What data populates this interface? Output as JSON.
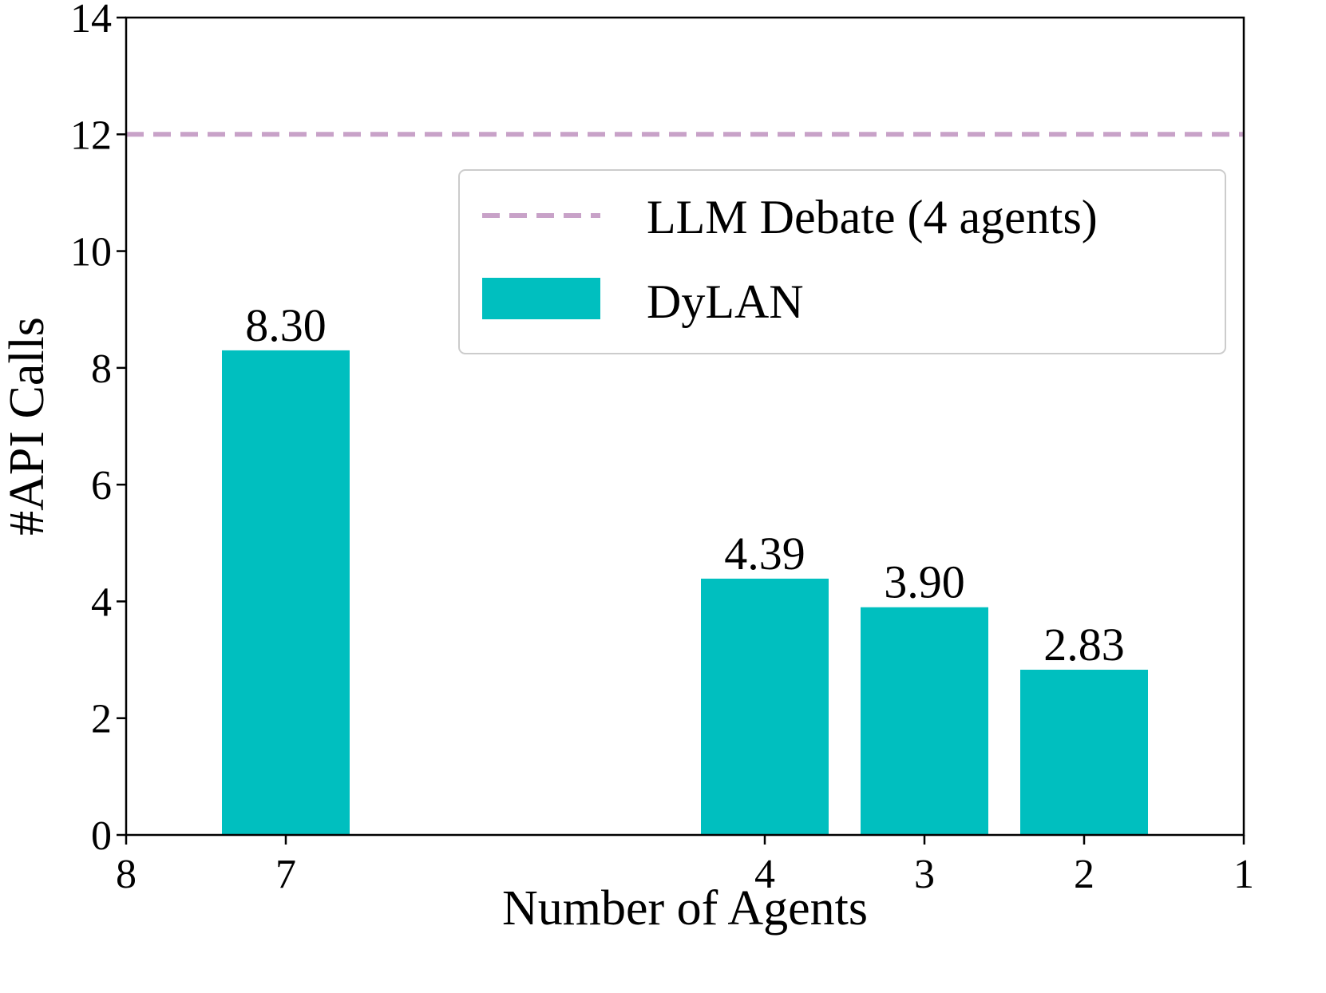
{
  "chart_data": {
    "type": "bar",
    "xlabel": "Number of Agents",
    "ylabel": "#API Calls",
    "xlim": [
      8,
      1
    ],
    "ylim": [
      0,
      14
    ],
    "x_ticks": [
      "8",
      "7",
      "4",
      "3",
      "2",
      "1"
    ],
    "y_ticks": [
      "0",
      "2",
      "4",
      "6",
      "8",
      "10",
      "12",
      "14"
    ],
    "categories": [
      "7",
      "4",
      "3",
      "2"
    ],
    "series": [
      {
        "name": "DyLAN",
        "values": [
          8.3,
          4.39,
          3.9,
          2.83
        ],
        "labels": [
          "8.30",
          "4.39",
          "3.90",
          "2.83"
        ],
        "color": "#00bfbf"
      }
    ],
    "reference_lines": [
      {
        "name": "LLM Debate (4 agents)",
        "y": 12,
        "style": "dashed",
        "color": "#c8a2c8"
      }
    ],
    "legend": {
      "position": "upper-right",
      "entries": [
        "LLM Debate (4 agents)",
        "DyLAN"
      ]
    },
    "grid": false
  }
}
